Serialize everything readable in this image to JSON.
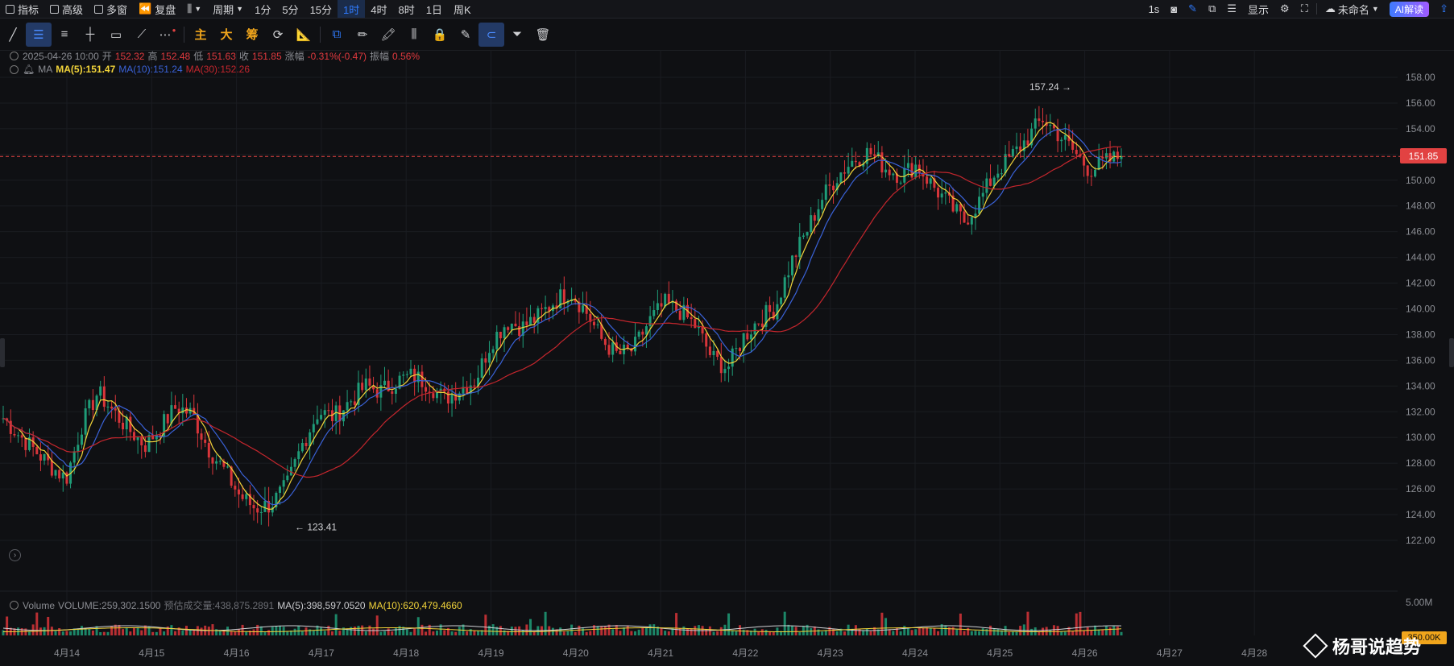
{
  "topbar": {
    "indicators": "指标",
    "advanced": "高级",
    "multi_window": "多窗",
    "replay": "复盘",
    "period": "周期",
    "intervals": [
      "1分",
      "5分",
      "15分",
      "1时",
      "4时",
      "8时",
      "1日",
      "周K"
    ],
    "active_interval": "1时",
    "right_interval": "1s",
    "display": "显示",
    "layout_name": "未命名",
    "ai_button": "AI解读"
  },
  "toolbar": {
    "zh_tools": [
      "主",
      "大",
      "筹"
    ]
  },
  "ohlc_legend": {
    "datetime": "2025-04-26 10:00",
    "open_label": "开",
    "open": "152.32",
    "high_label": "高",
    "high": "152.48",
    "low_label": "低",
    "low": "151.63",
    "close_label": "收",
    "close": "151.85",
    "change_label": "涨幅",
    "change": "-0.31%(-0.47)",
    "amplitude_label": "振幅",
    "amplitude": "0.56%"
  },
  "ma_legend": {
    "name": "MA",
    "ma5": "MA(5):151.47",
    "ma10": "MA(10):151.24",
    "ma30": "MA(30):152.26"
  },
  "volume_legend": {
    "name": "Volume",
    "volume": "VOLUME:259,302.1500",
    "estimated": "预估成交量:438,875.2891",
    "ma5": "MA(5):398,597.0520",
    "ma10": "MA(10):620,479.4660"
  },
  "price_axis_labels": [
    "158.00",
    "156.00",
    "154.00",
    "152.00",
    "150.00",
    "148.00",
    "146.00",
    "144.00",
    "142.00",
    "140.00",
    "138.00",
    "136.00",
    "134.00",
    "132.00",
    "130.00",
    "128.00",
    "126.00",
    "124.00",
    "122.00"
  ],
  "volume_axis_label": "5.00M",
  "current_price": "151.85",
  "volume_tag": "350.00K",
  "high_marker": "157.24",
  "low_marker": "123.41",
  "date_labels": [
    "4月14",
    "4月15",
    "4月16",
    "4月17",
    "4月18",
    "4月19",
    "4月20",
    "4月21",
    "4月22",
    "4月23",
    "4月24",
    "4月25",
    "4月26",
    "4月27",
    "4月28"
  ],
  "watermark": "杨哥说趋势",
  "colors": {
    "up": "#1f9c78",
    "down": "#d8353a",
    "ma5": "#f2d43a",
    "ma10": "#3a62d8",
    "ma30": "#c4262d",
    "price_tag": "#e24242",
    "accent": "#2f7bff"
  },
  "chart_data": {
    "type": "candlestick",
    "timeframe": "1h",
    "x": [
      "4月14",
      "4月15",
      "4月16",
      "4月17",
      "4月18",
      "4月19",
      "4月20",
      "4月21",
      "4月22",
      "4月23",
      "4月24",
      "4月25",
      "4月26"
    ],
    "close_path": [
      131.5,
      130.2,
      129.0,
      127.8,
      126.8,
      131.0,
      133.5,
      132.0,
      130.6,
      129.4,
      130.8,
      132.4,
      131.8,
      129.2,
      127.5,
      125.5,
      124.5,
      124.8,
      126.2,
      129.5,
      132.0,
      131.6,
      132.8,
      134.0,
      133.6,
      134.4,
      134.8,
      134.2,
      133.0,
      133.8,
      134.5,
      137.5,
      139.0,
      138.6,
      139.4,
      140.6,
      141.4,
      139.8,
      137.6,
      136.4,
      136.8,
      139.0,
      140.4,
      139.8,
      138.6,
      136.2,
      135.4,
      137.8,
      139.2,
      140.0,
      143.5,
      146.0,
      148.6,
      150.4,
      151.6,
      152.2,
      151.0,
      150.4,
      151.2,
      149.6,
      148.2,
      146.8,
      148.4,
      150.6,
      151.8,
      153.2,
      154.8,
      153.6,
      152.2,
      150.8,
      151.4,
      151.85
    ],
    "ylim": [
      122,
      158
    ],
    "high_annotation": 157.24,
    "low_annotation": 123.41,
    "last_close": 151.85,
    "ma_series": [
      "MA(5)",
      "MA(10)",
      "MA(30)"
    ],
    "volume_axis_max_label": "5.00M"
  }
}
